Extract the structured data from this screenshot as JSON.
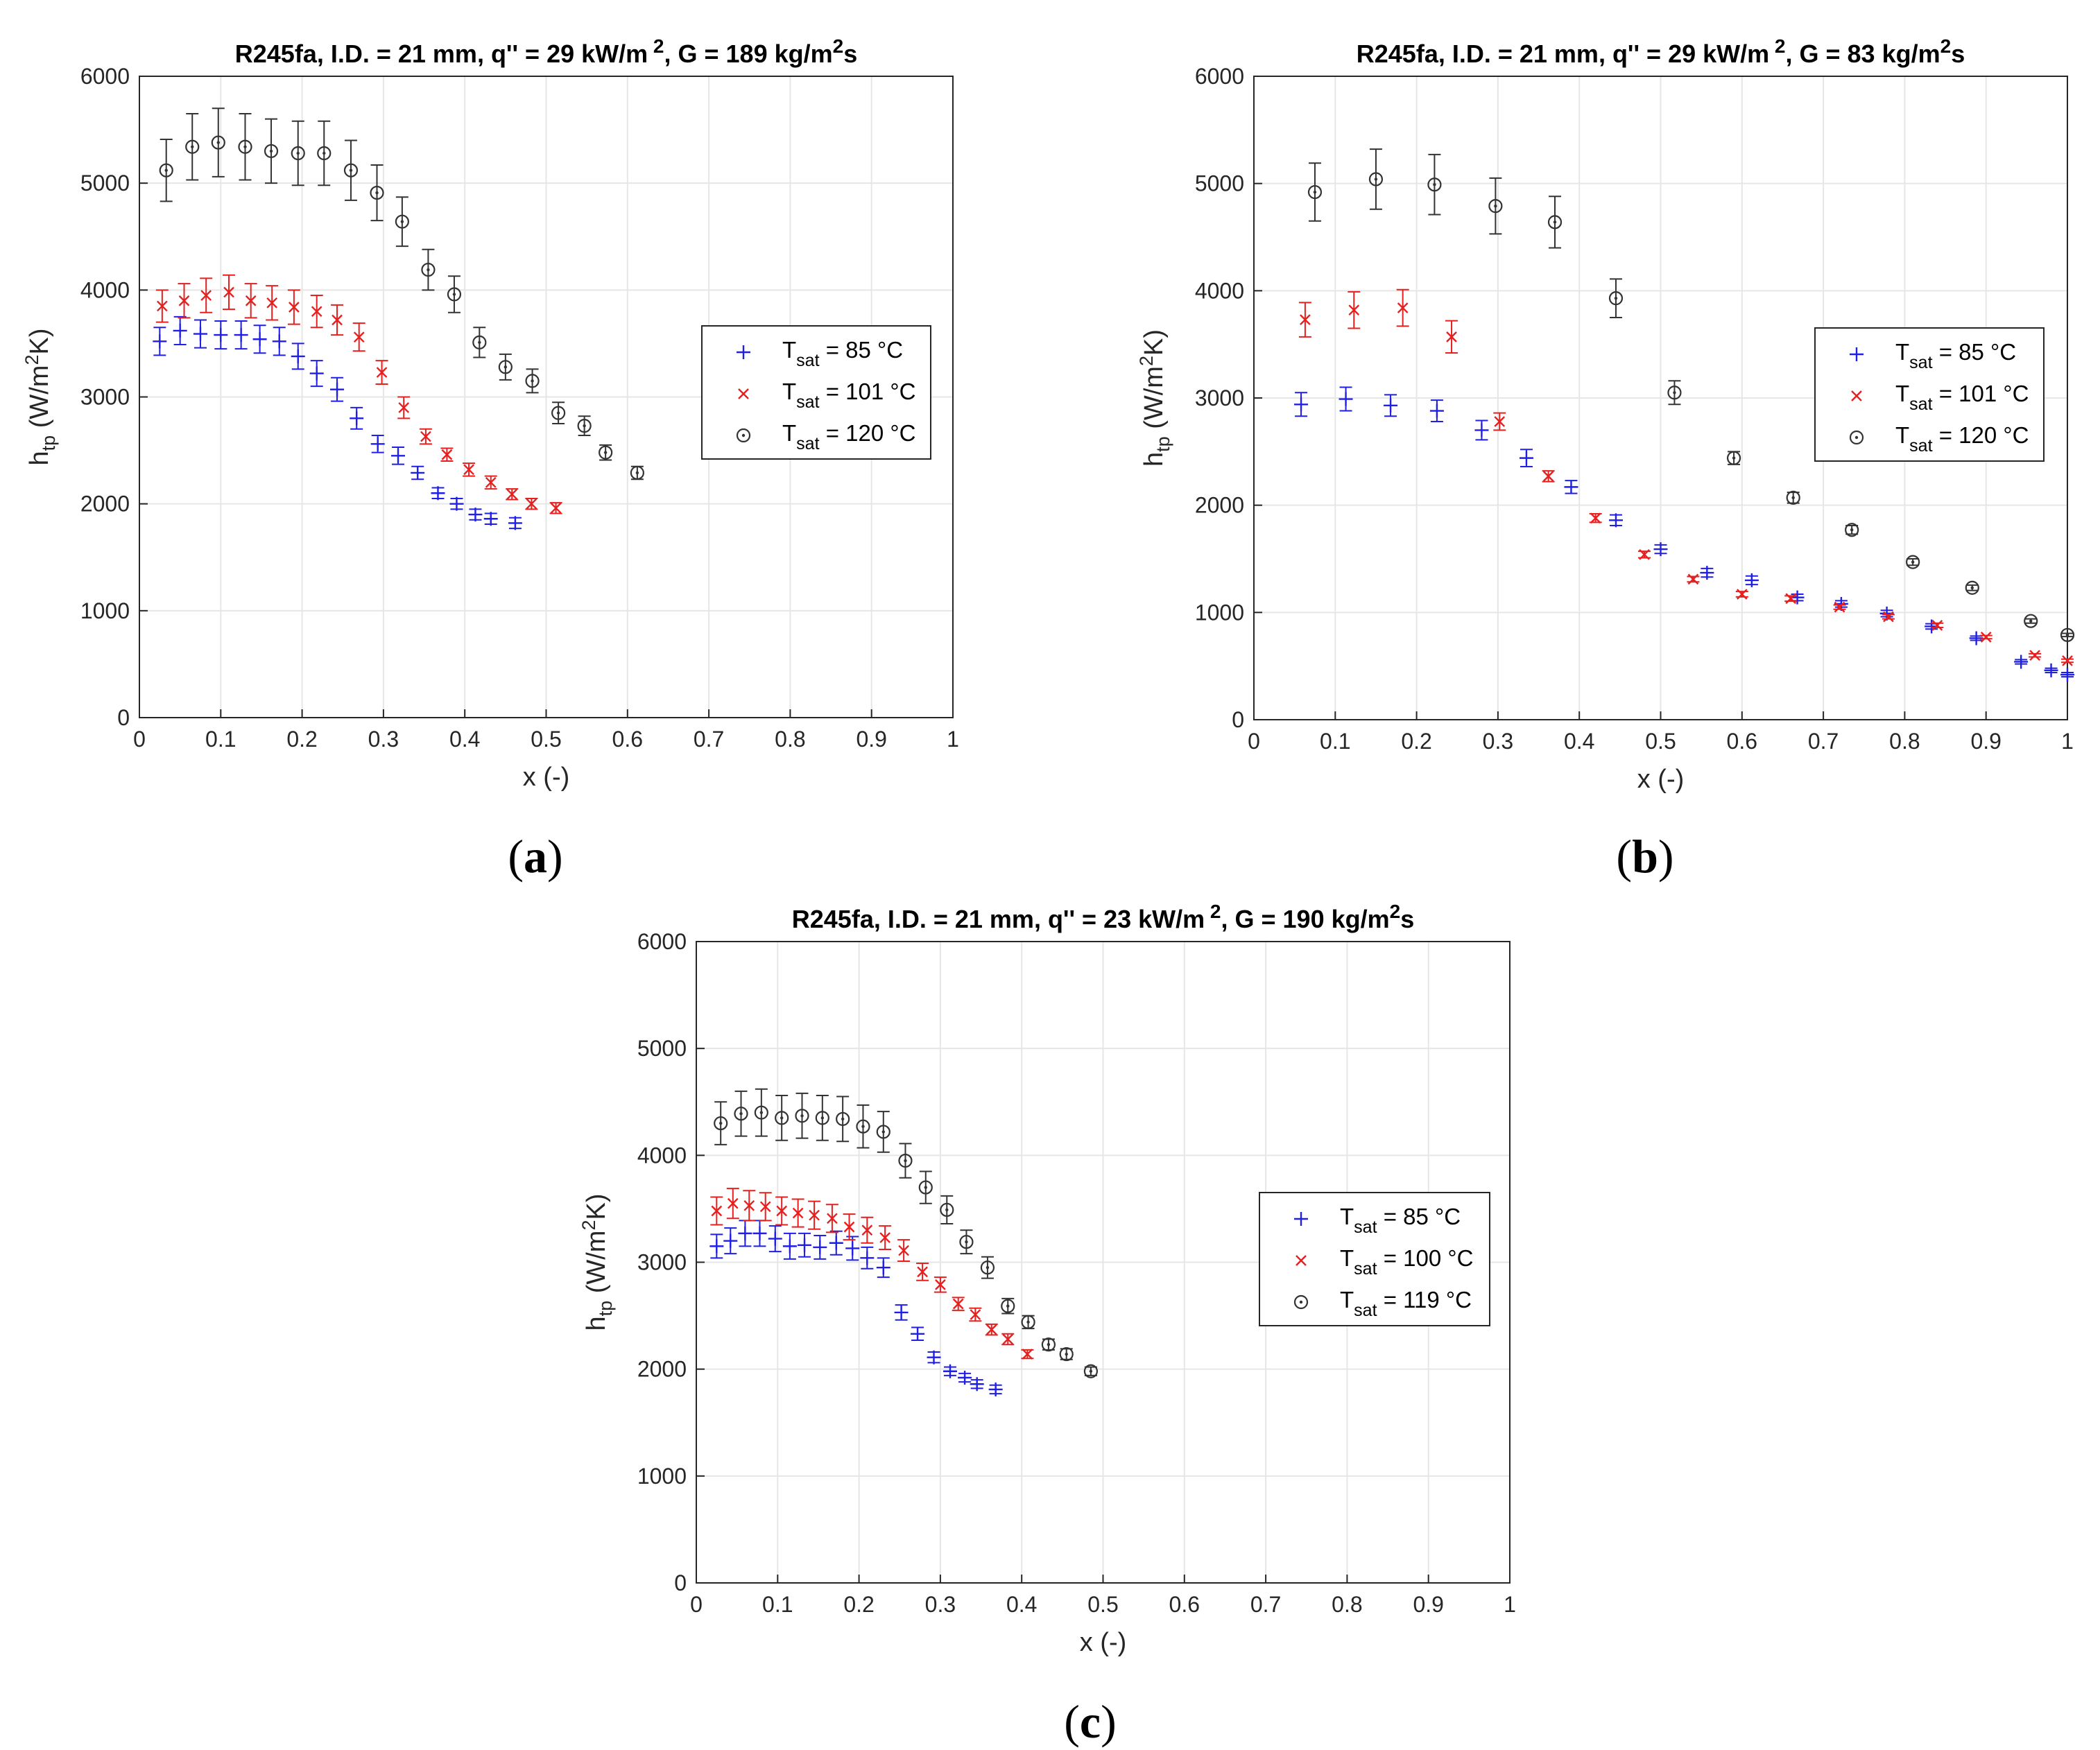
{
  "colors": {
    "series85": "#1f1fe6",
    "series101": "#e61f1f",
    "series120": "#333333",
    "grid": "#e6e6e6",
    "axis": "#262626"
  },
  "chart_data": [
    {
      "type": "scatter",
      "panel_label": "a",
      "title_parts": [
        "R245fa, I.D. = 21 mm, q'' = 29 kW/m",
        "2",
        ", G = 189 kg/m",
        "2",
        "s"
      ],
      "xlabel": "x (-)",
      "ylabel_parts": [
        "h",
        "tp",
        " (W/m",
        "2",
        "K)"
      ],
      "xlim": [
        0,
        1
      ],
      "ylim": [
        0,
        6000
      ],
      "xticks": [
        "0",
        "0.1",
        "0.2",
        "0.3",
        "0.4",
        "0.5",
        "0.6",
        "0.7",
        "0.8",
        "0.9",
        "1"
      ],
      "yticks": [
        "0",
        "1000",
        "2000",
        "3000",
        "4000",
        "5000",
        "6000"
      ],
      "legend_position": "right",
      "series": [
        {
          "name": "T_sat = 85 °C",
          "label_main": "T",
          "label_sub": "sat",
          "label_rest": " = 85 °C",
          "marker": "plus",
          "color_key": "series85",
          "x": [
            0.025,
            0.05,
            0.075,
            0.1,
            0.125,
            0.148,
            0.172,
            0.195,
            0.218,
            0.243,
            0.267,
            0.293,
            0.318,
            0.342,
            0.367,
            0.39,
            0.413,
            0.432,
            0.462
          ],
          "y": [
            3520,
            3620,
            3590,
            3580,
            3580,
            3540,
            3520,
            3380,
            3220,
            3070,
            2800,
            2560,
            2450,
            2290,
            2100,
            2000,
            1900,
            1860,
            1820
          ],
          "err": [
            130,
            130,
            130,
            130,
            130,
            130,
            130,
            120,
            120,
            110,
            100,
            80,
            80,
            60,
            50,
            50,
            50,
            50,
            50
          ]
        },
        {
          "name": "T_sat = 101 °C",
          "label_main": "T",
          "label_sub": "sat",
          "label_rest": " = 101 °C",
          "marker": "cross",
          "color_key": "series101",
          "x": [
            0.028,
            0.055,
            0.082,
            0.11,
            0.137,
            0.163,
            0.19,
            0.218,
            0.243,
            0.27,
            0.298,
            0.325,
            0.352,
            0.378,
            0.405,
            0.432,
            0.458,
            0.482,
            0.512
          ],
          "y": [
            3850,
            3900,
            3950,
            3980,
            3900,
            3880,
            3840,
            3800,
            3720,
            3560,
            3230,
            2900,
            2630,
            2460,
            2320,
            2200,
            2090,
            2000,
            1960
          ],
          "err": [
            150,
            160,
            160,
            160,
            160,
            160,
            160,
            150,
            140,
            130,
            110,
            100,
            70,
            60,
            60,
            60,
            50,
            50,
            50
          ]
        },
        {
          "name": "T_sat = 120 °C",
          "label_main": "T",
          "label_sub": "sat",
          "label_rest": " = 120 °C",
          "marker": "circle",
          "color_key": "series120",
          "x": [
            0.033,
            0.065,
            0.097,
            0.13,
            0.162,
            0.195,
            0.227,
            0.26,
            0.292,
            0.323,
            0.355,
            0.387,
            0.418,
            0.45,
            0.483,
            0.515,
            0.547,
            0.573,
            0.612
          ],
          "y": [
            5120,
            5340,
            5380,
            5340,
            5300,
            5280,
            5280,
            5120,
            4910,
            4640,
            4190,
            3960,
            3510,
            3280,
            3150,
            2850,
            2730,
            2480,
            2290
          ],
          "err": [
            290,
            310,
            320,
            310,
            300,
            300,
            300,
            280,
            260,
            230,
            190,
            170,
            140,
            120,
            110,
            100,
            90,
            70,
            60
          ]
        }
      ]
    },
    {
      "type": "scatter",
      "panel_label": "b",
      "title_parts": [
        "R245fa, I.D. = 21 mm, q'' = 29 kW/m",
        "2",
        ", G = 83 kg/m",
        "2",
        "s"
      ],
      "xlabel": "x (-)",
      "ylabel_parts": [
        "h",
        "tp",
        " (W/m",
        "2",
        "K)"
      ],
      "xlim": [
        0,
        1
      ],
      "ylim": [
        0,
        6000
      ],
      "xticks": [
        "0",
        "0.1",
        "0.2",
        "0.3",
        "0.4",
        "0.5",
        "0.6",
        "0.7",
        "0.8",
        "0.9",
        "1"
      ],
      "yticks": [
        "0",
        "1000",
        "2000",
        "3000",
        "4000",
        "5000",
        "6000"
      ],
      "legend_position": "right",
      "series": [
        {
          "name": "T_sat = 85 °C",
          "label_main": "T",
          "label_sub": "sat",
          "label_rest": " = 85 °C",
          "marker": "plus",
          "color_key": "series85",
          "x": [
            0.058,
            0.113,
            0.168,
            0.225,
            0.28,
            0.335,
            0.39,
            0.445,
            0.5,
            0.557,
            0.612,
            0.668,
            0.722,
            0.778,
            0.833,
            0.888,
            0.943,
            0.98,
            1.0
          ],
          "y": [
            2940,
            2990,
            2930,
            2880,
            2700,
            2440,
            2170,
            1860,
            1590,
            1370,
            1300,
            1140,
            1080,
            990,
            870,
            760,
            540,
            460,
            420
          ],
          "err": [
            110,
            110,
            100,
            100,
            90,
            80,
            60,
            50,
            40,
            40,
            40,
            30,
            30,
            30,
            25,
            20,
            20,
            20,
            20
          ]
        },
        {
          "name": "T_sat = 101 °C",
          "label_main": "T",
          "label_sub": "sat",
          "label_rest": " = 101 °C",
          "marker": "cross",
          "color_key": "series101",
          "x": [
            0.063,
            0.123,
            0.183,
            0.243,
            0.302,
            0.362,
            0.42,
            0.48,
            0.54,
            0.6,
            0.66,
            0.72,
            0.78,
            0.84,
            0.9,
            0.96,
            1.0
          ],
          "y": [
            3730,
            3820,
            3840,
            3570,
            2780,
            2270,
            1880,
            1540,
            1310,
            1170,
            1130,
            1050,
            960,
            880,
            770,
            600,
            550
          ],
          "err": [
            160,
            170,
            170,
            150,
            80,
            50,
            40,
            30,
            25,
            25,
            25,
            20,
            20,
            20,
            15,
            15,
            15
          ]
        },
        {
          "name": "T_sat = 120 °C",
          "label_main": "T",
          "label_sub": "sat",
          "label_rest": " = 120 °C",
          "marker": "circle",
          "color_key": "series120",
          "x": [
            0.075,
            0.15,
            0.222,
            0.297,
            0.37,
            0.445,
            0.517,
            0.59,
            0.663,
            0.735,
            0.81,
            0.883,
            0.955,
            1.0
          ],
          "y": [
            4920,
            5040,
            4990,
            4790,
            4640,
            3930,
            3050,
            2440,
            2070,
            1770,
            1470,
            1230,
            920,
            790
          ],
          "err": [
            270,
            280,
            280,
            260,
            240,
            180,
            110,
            60,
            50,
            40,
            30,
            25,
            20,
            15
          ]
        }
      ]
    },
    {
      "type": "scatter",
      "panel_label": "c",
      "title_parts": [
        "R245fa, I.D. = 21 mm, q'' = 23 kW/m",
        "2",
        ", G = 190 kg/m",
        "2",
        "s"
      ],
      "xlabel": "x (-)",
      "ylabel_parts": [
        "h",
        "tp",
        " (W/m",
        "2",
        "K)"
      ],
      "xlim": [
        0,
        1
      ],
      "ylim": [
        0,
        6000
      ],
      "xticks": [
        "0",
        "0.1",
        "0.2",
        "0.3",
        "0.4",
        "0.5",
        "0.6",
        "0.7",
        "0.8",
        "0.9",
        "1"
      ],
      "yticks": [
        "0",
        "1000",
        "2000",
        "3000",
        "4000",
        "5000",
        "6000"
      ],
      "legend_position": "right",
      "series": [
        {
          "name": "T_sat = 85 °C",
          "label_main": "T",
          "label_sub": "sat",
          "label_rest": " = 85 °C",
          "marker": "plus",
          "color_key": "series85",
          "x": [
            0.025,
            0.042,
            0.06,
            0.078,
            0.097,
            0.115,
            0.133,
            0.152,
            0.172,
            0.192,
            0.21,
            0.23,
            0.252,
            0.272,
            0.292,
            0.312,
            0.33,
            0.345,
            0.368
          ],
          "y": [
            3150,
            3200,
            3270,
            3270,
            3220,
            3150,
            3160,
            3140,
            3180,
            3130,
            3040,
            2950,
            2530,
            2330,
            2110,
            1980,
            1920,
            1860,
            1810
          ],
          "err": [
            110,
            120,
            120,
            120,
            120,
            120,
            110,
            110,
            110,
            110,
            100,
            90,
            70,
            60,
            50,
            40,
            40,
            40,
            40
          ]
        },
        {
          "name": "T_sat = 100 °C",
          "label_main": "T",
          "label_sub": "sat",
          "label_rest": " = 100 °C",
          "marker": "cross",
          "color_key": "series101",
          "x": [
            0.025,
            0.045,
            0.065,
            0.085,
            0.105,
            0.125,
            0.145,
            0.167,
            0.188,
            0.21,
            0.232,
            0.255,
            0.278,
            0.3,
            0.322,
            0.343,
            0.363,
            0.383,
            0.407
          ],
          "y": [
            3480,
            3550,
            3530,
            3520,
            3480,
            3460,
            3440,
            3410,
            3330,
            3300,
            3230,
            3110,
            2910,
            2790,
            2610,
            2510,
            2370,
            2280,
            2140
          ],
          "err": [
            130,
            140,
            140,
            130,
            130,
            130,
            130,
            130,
            120,
            120,
            110,
            100,
            80,
            70,
            60,
            60,
            50,
            50,
            40
          ]
        },
        {
          "name": "T_sat = 119 °C",
          "label_main": "T",
          "label_sub": "sat",
          "label_rest": " = 119 °C",
          "marker": "circle",
          "color_key": "series120",
          "x": [
            0.03,
            0.055,
            0.08,
            0.105,
            0.13,
            0.155,
            0.18,
            0.205,
            0.23,
            0.257,
            0.282,
            0.308,
            0.332,
            0.358,
            0.383,
            0.408,
            0.433,
            0.455,
            0.485
          ],
          "y": [
            4300,
            4390,
            4400,
            4350,
            4370,
            4350,
            4340,
            4270,
            4220,
            3950,
            3700,
            3490,
            3190,
            2950,
            2590,
            2440,
            2230,
            2140,
            1980
          ],
          "err": [
            200,
            210,
            220,
            210,
            210,
            210,
            210,
            200,
            190,
            160,
            150,
            130,
            110,
            100,
            70,
            60,
            50,
            50,
            40
          ]
        }
      ]
    }
  ]
}
